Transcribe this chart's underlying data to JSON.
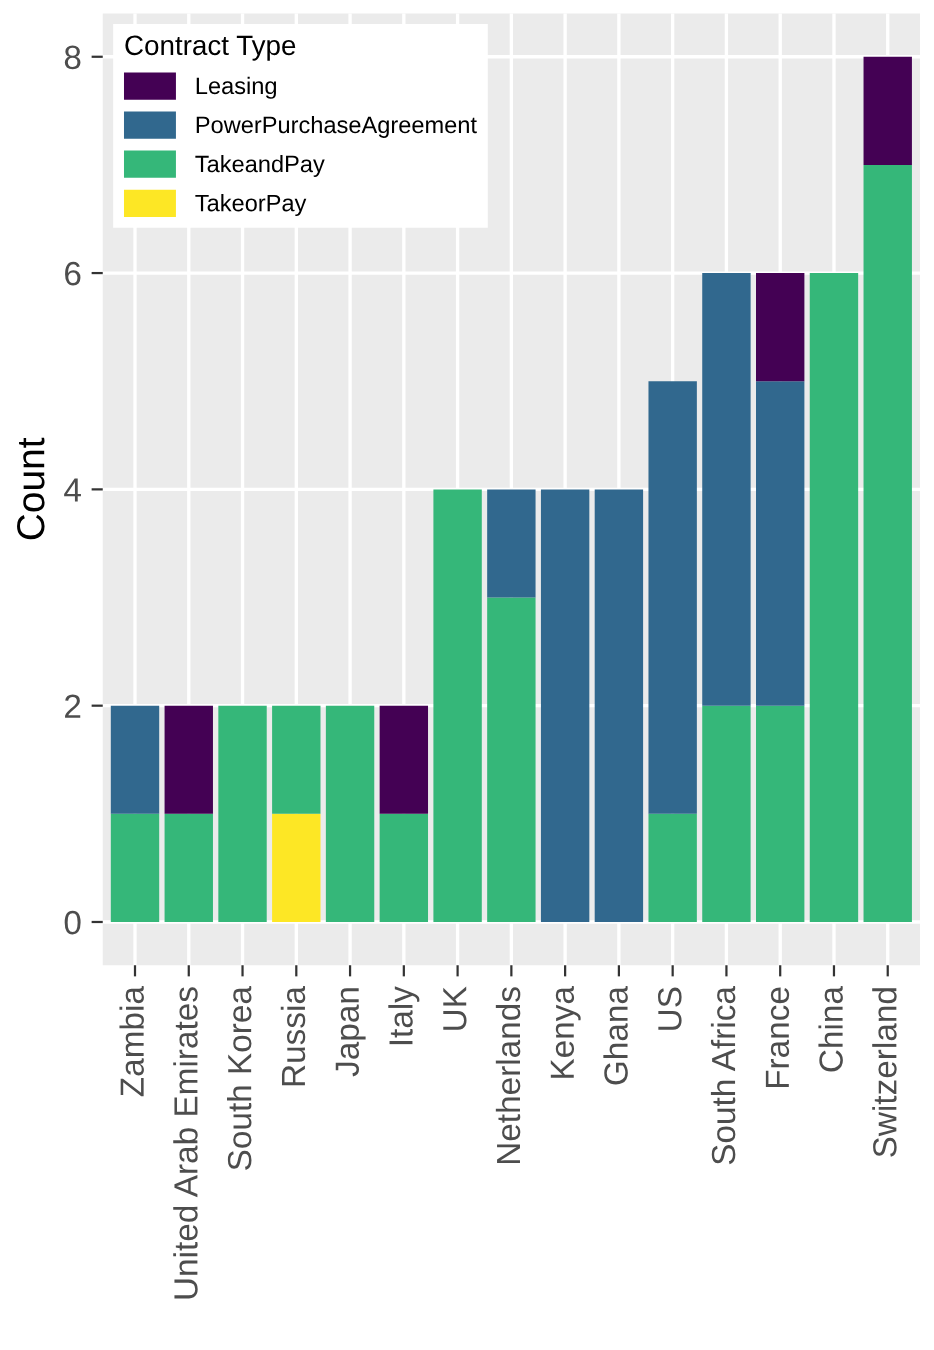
{
  "chart_data": {
    "type": "bar",
    "stacked": true,
    "ylabel": "Count",
    "legend_title": "Contract Type",
    "legend": "top left",
    "grid": true,
    "categories": [
      "Zambia",
      "United Arab Emirates",
      "South Korea",
      "Russia",
      "Japan",
      "Italy",
      "UK",
      "Netherlands",
      "Kenya",
      "Ghana",
      "US",
      "South Africa",
      "France",
      "China",
      "Switzerland"
    ],
    "ylim": [
      -0.4,
      8.4
    ],
    "yticks": [
      0,
      2,
      4,
      6,
      8
    ],
    "series": [
      {
        "name": "TakeorPay",
        "color": "#fde725",
        "values": [
          0,
          0,
          0,
          1,
          0,
          0,
          0,
          0,
          0,
          0,
          0,
          0,
          0,
          0,
          0
        ]
      },
      {
        "name": "TakeandPay",
        "color": "#35b779",
        "values": [
          1,
          1,
          2,
          1,
          2,
          1,
          4,
          3,
          0,
          0,
          1,
          2,
          2,
          6,
          7
        ]
      },
      {
        "name": "PowerPurchaseAgreement",
        "color": "#31688e",
        "values": [
          1,
          0,
          0,
          0,
          0,
          0,
          0,
          1,
          4,
          4,
          4,
          4,
          3,
          0,
          0
        ]
      },
      {
        "name": "Leasing",
        "color": "#440154",
        "values": [
          0,
          1,
          0,
          0,
          0,
          1,
          0,
          0,
          0,
          0,
          0,
          0,
          1,
          0,
          1
        ]
      }
    ]
  }
}
